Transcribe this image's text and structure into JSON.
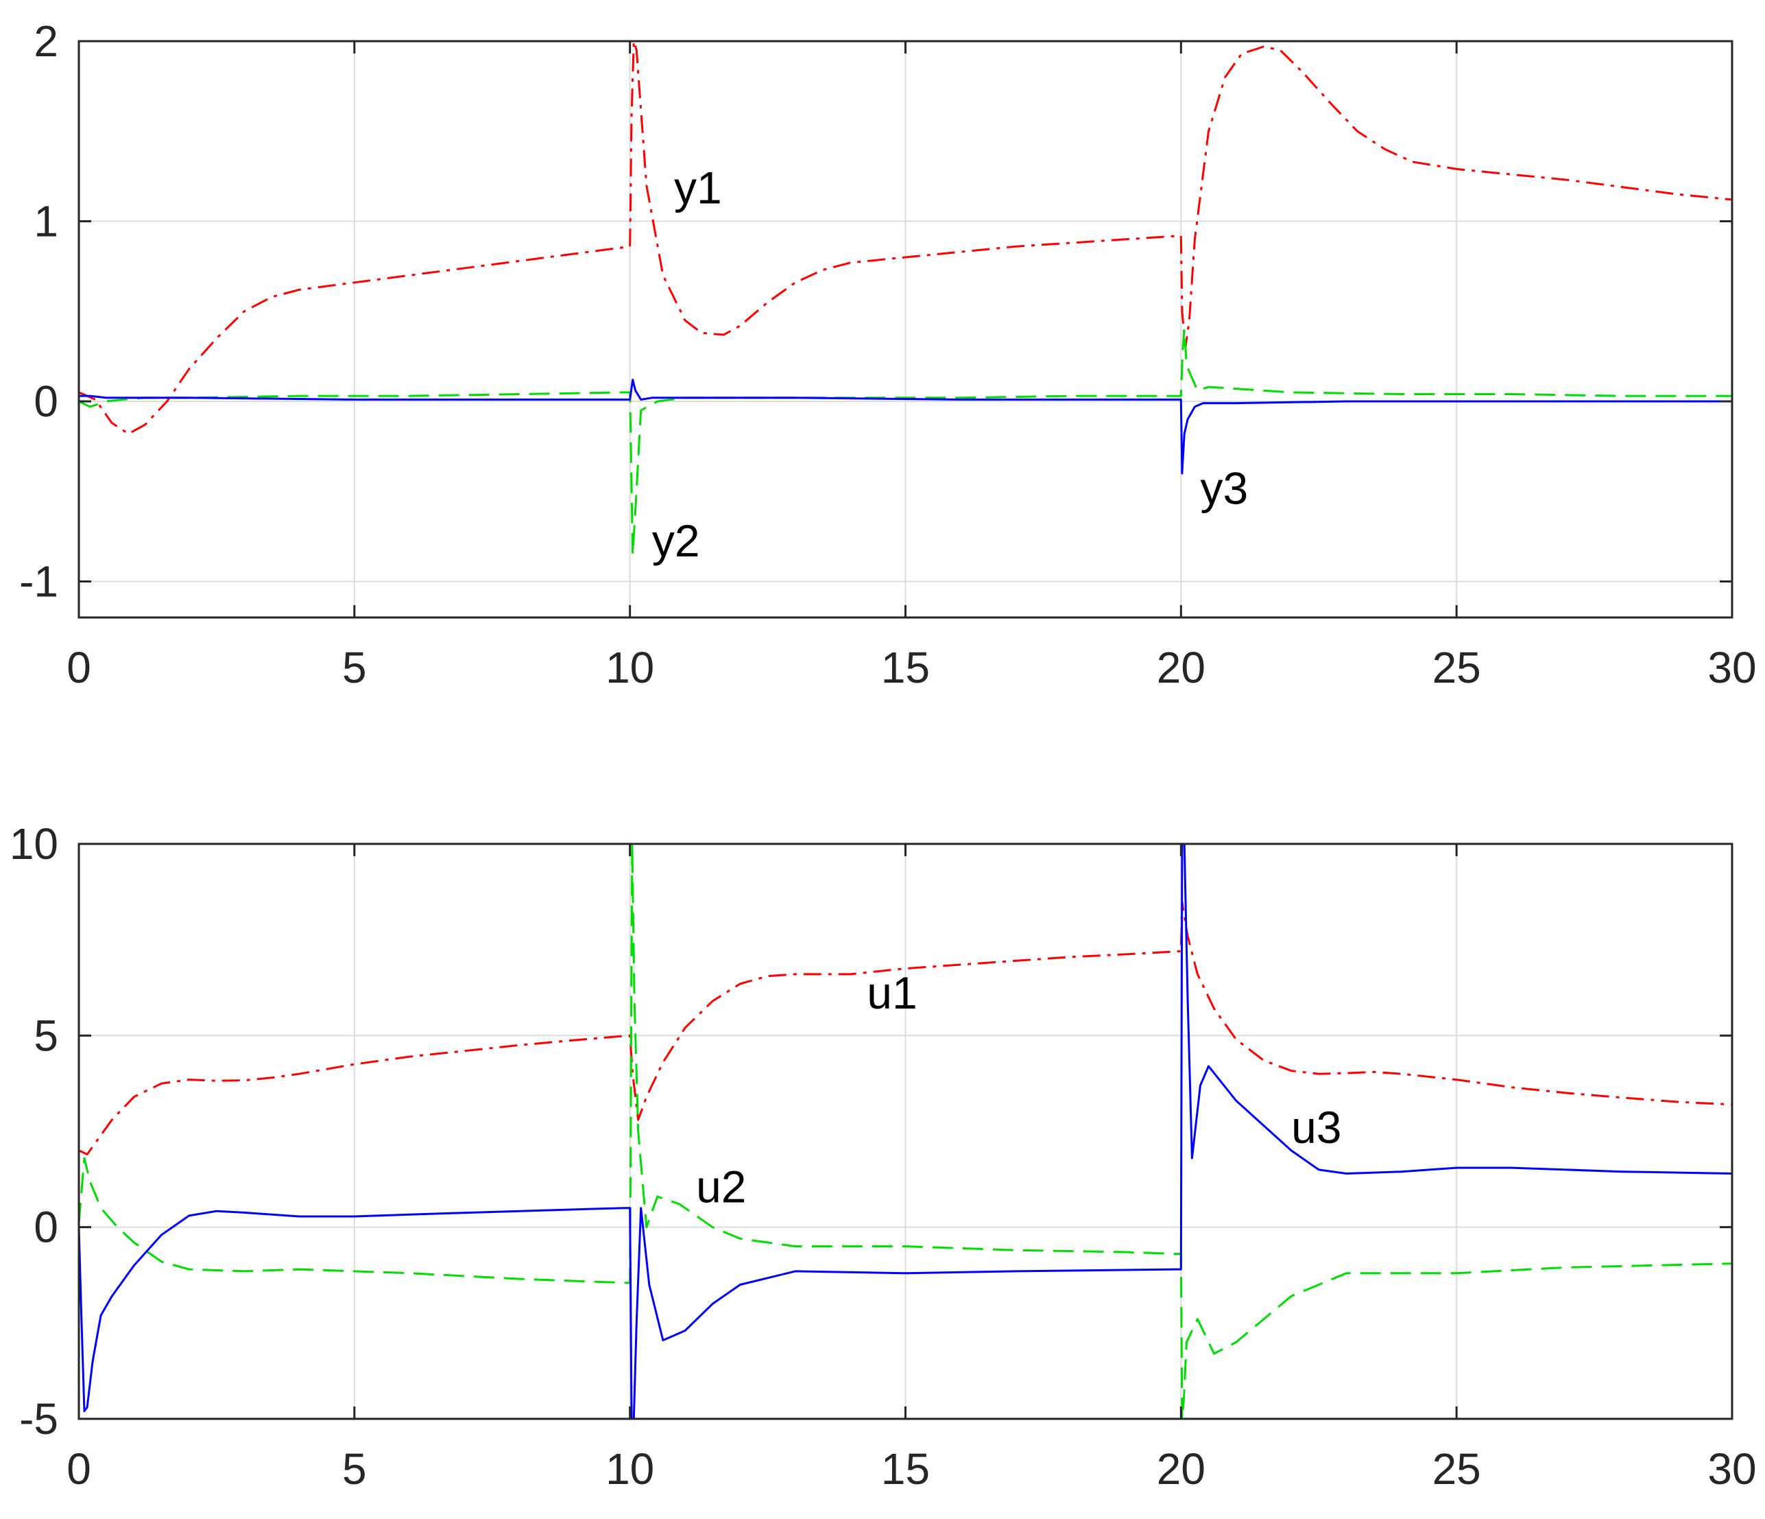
{
  "chart_data": [
    {
      "type": "line",
      "xlim": [
        0,
        30
      ],
      "ylim": [
        -1.2,
        2
      ],
      "xticks": [
        0,
        5,
        10,
        15,
        20,
        25,
        30
      ],
      "yticks": [
        -1,
        0,
        1,
        2
      ],
      "xtick_labels": [
        "0",
        "5",
        "10",
        "15",
        "20",
        "25",
        "30"
      ],
      "ytick_labels": [
        "-1",
        "0",
        "1",
        "2"
      ],
      "grid": true,
      "series": [
        {
          "name": "y1",
          "color": "#ff0000",
          "style": "dashdot",
          "x": [
            0,
            0.3,
            0.6,
            0.9,
            1.2,
            1.6,
            2,
            2.5,
            3,
            3.5,
            4,
            5,
            6,
            7,
            8,
            9,
            10,
            10.03,
            10.07,
            10.12,
            10.3,
            10.6,
            11,
            11.3,
            11.7,
            12,
            12.5,
            13,
            13.5,
            14,
            15,
            16,
            17,
            18,
            19,
            20,
            20.02,
            20.08,
            20.15,
            20.25,
            20.5,
            20.8,
            21.1,
            21.5,
            21.8,
            22.2,
            22.7,
            23.2,
            23.7,
            24.2,
            25,
            26,
            27,
            28,
            29,
            30
          ],
          "y": [
            0.05,
            0.01,
            -0.12,
            -0.18,
            -0.13,
            0.0,
            0.18,
            0.35,
            0.5,
            0.58,
            0.62,
            0.66,
            0.7,
            0.74,
            0.78,
            0.82,
            0.86,
            1.6,
            2.0,
            1.95,
            1.2,
            0.7,
            0.45,
            0.38,
            0.37,
            0.42,
            0.55,
            0.66,
            0.73,
            0.77,
            0.8,
            0.83,
            0.86,
            0.88,
            0.9,
            0.92,
            0.5,
            0.3,
            0.45,
            0.9,
            1.5,
            1.8,
            1.93,
            1.97,
            1.95,
            1.83,
            1.66,
            1.5,
            1.4,
            1.33,
            1.29,
            1.26,
            1.23,
            1.19,
            1.15,
            1.12
          ]
        },
        {
          "name": "y2",
          "color": "#00dd00",
          "style": "dashed",
          "x": [
            0,
            0.2,
            0.5,
            0.8,
            1.2,
            2,
            4,
            6,
            8,
            9.9,
            10,
            10.05,
            10.1,
            10.2,
            10.5,
            11,
            12,
            14,
            16,
            18,
            19.9,
            20,
            20.03,
            20.06,
            20.1,
            20.3,
            20.5,
            21,
            22,
            24,
            26,
            28,
            30
          ],
          "y": [
            0.0,
            -0.03,
            0.0,
            0.01,
            0.02,
            0.02,
            0.03,
            0.03,
            0.04,
            0.05,
            0.05,
            -0.85,
            -0.6,
            -0.05,
            0.0,
            0.02,
            0.02,
            0.02,
            0.02,
            0.03,
            0.03,
            0.03,
            0.28,
            0.4,
            0.2,
            0.06,
            0.08,
            0.07,
            0.05,
            0.04,
            0.04,
            0.03,
            0.03
          ]
        },
        {
          "name": "y3",
          "color": "#0000ff",
          "style": "solid",
          "x": [
            0,
            0.2,
            0.5,
            1,
            2,
            5,
            9.9,
            10,
            10.05,
            10.1,
            10.2,
            10.4,
            11,
            13,
            16,
            19.9,
            20,
            20.02,
            20.06,
            20.12,
            20.25,
            20.4,
            21,
            23,
            26,
            30
          ],
          "y": [
            0.03,
            0.03,
            0.02,
            0.02,
            0.02,
            0.01,
            0.01,
            0.01,
            0.12,
            0.06,
            0.01,
            0.02,
            0.02,
            0.02,
            0.01,
            0.01,
            0.01,
            -0.4,
            -0.18,
            -0.1,
            -0.03,
            -0.01,
            -0.01,
            0.0,
            0.0,
            0.0
          ]
        }
      ],
      "annotations": [
        {
          "text": "y1",
          "x": 10.8,
          "y": 1.1
        },
        {
          "text": "y2",
          "x": 10.4,
          "y": -0.86
        },
        {
          "text": "y3",
          "x": 20.35,
          "y": -0.57
        }
      ]
    },
    {
      "type": "line",
      "xlim": [
        0,
        30
      ],
      "ylim": [
        -5,
        10
      ],
      "xticks": [
        0,
        5,
        10,
        15,
        20,
        25,
        30
      ],
      "yticks": [
        -5,
        0,
        5,
        10
      ],
      "xtick_labels": [
        "0",
        "5",
        "10",
        "15",
        "20",
        "25",
        "30"
      ],
      "ytick_labels": [
        "-5",
        "0",
        "5",
        "10"
      ],
      "grid": true,
      "series": [
        {
          "name": "u1",
          "color": "#ff0000",
          "style": "dashdot",
          "x": [
            0,
            0.15,
            0.3,
            0.6,
            1,
            1.5,
            2,
            2.5,
            3,
            3.5,
            4,
            5,
            6,
            7,
            8,
            9,
            10,
            10.05,
            10.15,
            10.3,
            10.6,
            11,
            11.5,
            12,
            12.5,
            13,
            14,
            15,
            16,
            17,
            18,
            19,
            20,
            20.02,
            20.05,
            20.12,
            20.3,
            20.6,
            21,
            21.5,
            22,
            22.5,
            23,
            23.5,
            24,
            25,
            26,
            27,
            28,
            29,
            30
          ],
          "y": [
            2.0,
            1.9,
            2.2,
            2.8,
            3.4,
            3.75,
            3.85,
            3.82,
            3.83,
            3.9,
            4.0,
            4.25,
            4.45,
            4.6,
            4.75,
            4.88,
            5.0,
            4.0,
            2.8,
            3.4,
            4.3,
            5.2,
            5.9,
            6.35,
            6.55,
            6.6,
            6.6,
            6.75,
            6.85,
            6.95,
            7.05,
            7.12,
            7.2,
            8.5,
            8.2,
            7.6,
            6.6,
            5.7,
            4.9,
            4.35,
            4.08,
            4.0,
            4.02,
            4.05,
            4.0,
            3.85,
            3.65,
            3.5,
            3.38,
            3.27,
            3.2
          ]
        },
        {
          "name": "u2",
          "color": "#00dd00",
          "style": "dashed",
          "x": [
            0,
            0.1,
            0.2,
            0.4,
            0.7,
            1,
            1.5,
            2,
            3,
            4,
            6,
            8,
            9.9,
            10,
            10.04,
            10.08,
            10.15,
            10.3,
            10.5,
            10.9,
            11.5,
            12,
            13,
            15,
            17,
            19,
            20,
            20.02,
            20.05,
            20.1,
            20.3,
            20.6,
            21,
            22,
            23,
            25,
            27,
            30
          ],
          "y": [
            0.1,
            1.8,
            1.2,
            0.5,
            0.0,
            -0.4,
            -0.9,
            -1.1,
            -1.15,
            -1.1,
            -1.2,
            -1.35,
            -1.45,
            -1.45,
            10,
            6.0,
            2.5,
            0.0,
            0.8,
            0.6,
            0.0,
            -0.3,
            -0.5,
            -0.5,
            -0.6,
            -0.65,
            -0.7,
            -5,
            -4.5,
            -3.0,
            -2.4,
            -3.3,
            -3.0,
            -1.8,
            -1.2,
            -1.2,
            -1.05,
            -0.95
          ]
        },
        {
          "name": "u3",
          "color": "#0000ff",
          "style": "solid",
          "x": [
            0,
            0.05,
            0.1,
            0.15,
            0.25,
            0.4,
            0.6,
            1,
            1.5,
            2,
            2.5,
            3,
            4,
            5,
            6,
            8,
            9.9,
            10,
            10.03,
            10.07,
            10.12,
            10.2,
            10.35,
            10.6,
            11,
            11.5,
            12,
            13,
            15,
            17,
            19.9,
            20,
            20.02,
            20.06,
            20.12,
            20.2,
            20.35,
            20.5,
            21,
            22,
            22.5,
            23,
            24,
            25,
            26,
            28,
            30
          ],
          "y": [
            0.0,
            -2.5,
            -4.8,
            -4.7,
            -3.5,
            -2.3,
            -1.8,
            -1.0,
            -0.2,
            0.3,
            0.42,
            0.38,
            0.28,
            0.28,
            0.33,
            0.42,
            0.5,
            0.5,
            -5,
            -5,
            -2.5,
            0.5,
            -1.5,
            -2.95,
            -2.7,
            -2.0,
            -1.5,
            -1.15,
            -1.2,
            -1.15,
            -1.1,
            -1.1,
            10,
            10,
            6.0,
            1.8,
            3.7,
            4.2,
            3.3,
            2.0,
            1.5,
            1.4,
            1.45,
            1.55,
            1.55,
            1.45,
            1.4
          ]
        }
      ],
      "annotations": [
        {
          "text": "u1",
          "x": 14.3,
          "y": 5.7
        },
        {
          "text": "u2",
          "x": 11.2,
          "y": 0.65
        },
        {
          "text": "u3",
          "x": 22.0,
          "y": 2.2
        }
      ]
    }
  ]
}
